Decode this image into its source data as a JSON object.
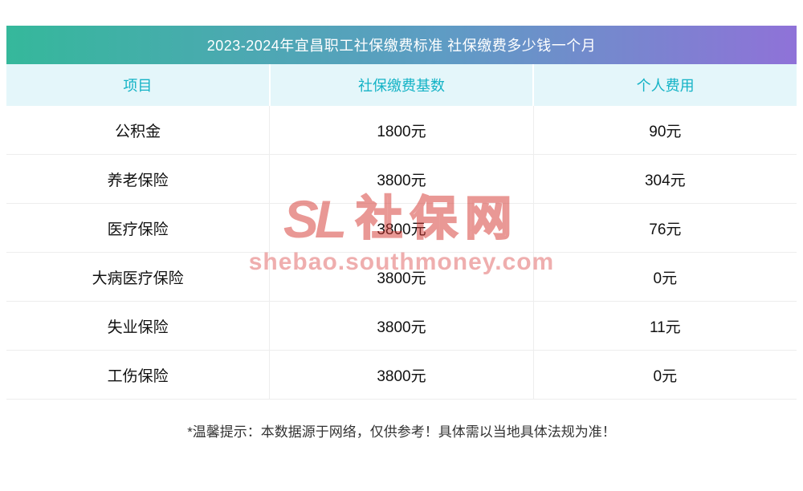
{
  "chart_data": {
    "type": "table",
    "title": "2023-2024年宜昌职工社保缴费标准 社保缴费多少钱一个月",
    "columns": [
      "项目",
      "社保缴费基数",
      "个人费用"
    ],
    "rows": [
      [
        "公积金",
        "1800元",
        "90元"
      ],
      [
        "养老保险",
        "3800元",
        "304元"
      ],
      [
        "医疗保险",
        "3800元",
        "76元"
      ],
      [
        "大病医疗保险",
        "3800元",
        "0元"
      ],
      [
        "失业保险",
        "3800元",
        "11元"
      ],
      [
        "工伤保险",
        "3800元",
        "0元"
      ]
    ],
    "note": "*温馨提示：本数据源于网络，仅供参考！具体需以当地具体法规为准！"
  },
  "watermark": {
    "sl": "SL",
    "name": "社保网",
    "url": "shebao.southmoney.com"
  },
  "colors": {
    "header_gradient_start": "#35b89b",
    "header_gradient_end": "#8f72d8",
    "header_row_bg": "#e4f6fa",
    "header_text": "#14b3c6",
    "watermark_red": "#d5342e"
  }
}
